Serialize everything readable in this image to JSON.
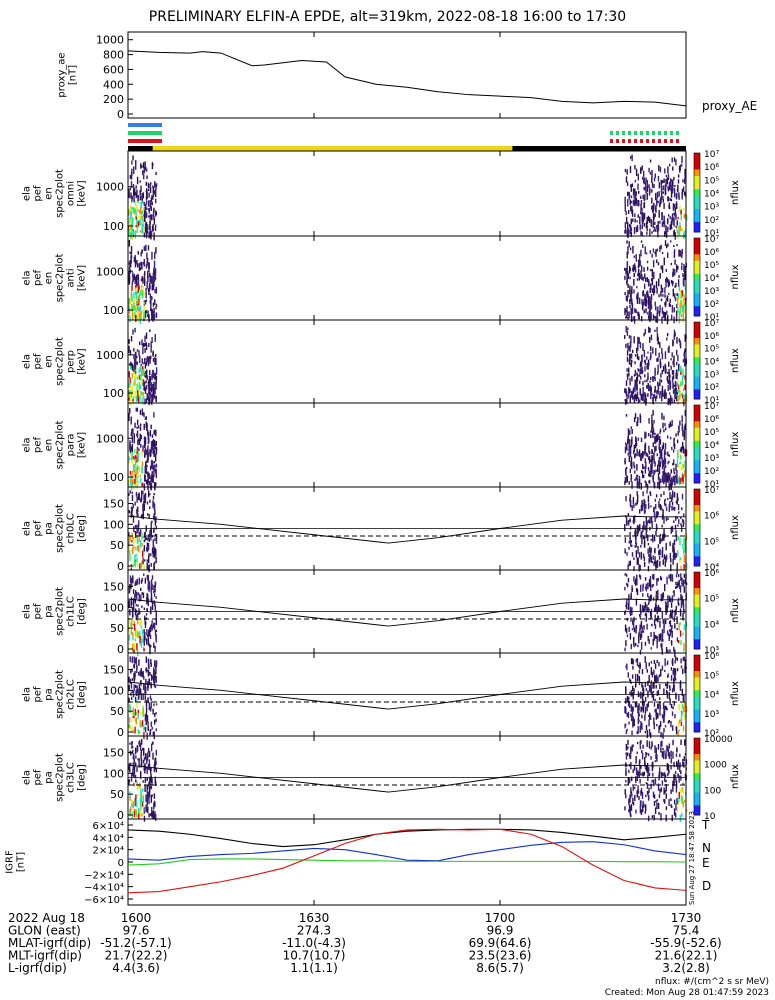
{
  "header": {
    "title": "PRELIMINARY ELFIN-A EPDE, alt=319km, 2022-08-18 16:00 to 17:30"
  },
  "chart_data": {
    "type": "multi-panel time series / spectrogram",
    "time_range": [
      "2022-08-18 16:00",
      "2022-08-18 17:30"
    ],
    "colors": {
      "blue": "#2f80e0",
      "green": "#21d46a",
      "red": "#e01020",
      "yellow": "#f1d514",
      "black": "#000000"
    },
    "ae_panel": {
      "ylabel": "proxy_ae\n[nT]",
      "yticks": [
        "1000",
        "800",
        "600",
        "400",
        "200",
        "0"
      ],
      "ylim": [
        0,
        1050
      ],
      "legend": "proxy_AE",
      "x_minutes": [
        0,
        5,
        10,
        12,
        15,
        20,
        22,
        28,
        32,
        35,
        40,
        45,
        50,
        55,
        60,
        65,
        70,
        75,
        80,
        85,
        90
      ],
      "values": [
        850,
        830,
        820,
        840,
        820,
        650,
        660,
        720,
        700,
        500,
        400,
        360,
        300,
        260,
        240,
        220,
        170,
        150,
        170,
        160,
        110
      ]
    },
    "status_bar": {
      "segments": [
        {
          "color": "black",
          "start_min": 0,
          "end_min": 4
        },
        {
          "color": "yellow",
          "start_min": 4,
          "end_min": 62
        },
        {
          "color": "black",
          "start_min": 62,
          "end_min": 90
        }
      ]
    },
    "spectrogram_panels": [
      {
        "ylabel": "ela\npef\nen\nspec2plot\nomni\n[keV]",
        "yticks": [
          "1000",
          "100"
        ],
        "cbar_labels": [
          "10⁷",
          "10⁶",
          "10⁵",
          "10⁴",
          "10³",
          "10²",
          "10¹"
        ],
        "cbar_unit": "nflux"
      },
      {
        "ylabel": "ela\npef\nen\nspec2plot\nanti\n[keV]",
        "yticks": [
          "1000",
          "100"
        ],
        "cbar_labels": [
          "10⁷",
          "10⁶",
          "10⁵",
          "10⁴",
          "10³",
          "10²",
          "10¹"
        ],
        "cbar_unit": "nflux"
      },
      {
        "ylabel": "ela\npef\nen\nspec2plot\nperp\n[keV]",
        "yticks": [
          "1000",
          "100"
        ],
        "cbar_labels": [
          "10⁷",
          "10⁶",
          "10⁵",
          "10⁴",
          "10³",
          "10²",
          "10¹"
        ],
        "cbar_unit": "nflux"
      },
      {
        "ylabel": "ela\npef\nen\nspec2plot\npara\n[keV]",
        "yticks": [
          "1000",
          "100"
        ],
        "cbar_labels": [
          "10⁷",
          "10⁶",
          "10⁵",
          "10⁴",
          "10³",
          "10²",
          "10¹"
        ],
        "cbar_unit": "nflux"
      }
    ],
    "pitch_panels": [
      {
        "ylabel": "ela\npef\npa\nspec2plot\nch0LC\n[deg]",
        "yticks": [
          "150",
          "100",
          "50",
          "0"
        ],
        "cbar_labels": [
          "10⁷",
          "10⁶",
          "10⁵",
          "10⁴"
        ],
        "cbar_unit": "nflux"
      },
      {
        "ylabel": "ela\npef\npa\nspec2plot\nch1LC\n[deg]",
        "yticks": [
          "150",
          "100",
          "50",
          "0"
        ],
        "cbar_labels": [
          "10⁶",
          "10⁵",
          "10⁴",
          "10³"
        ],
        "cbar_unit": "nflux"
      },
      {
        "ylabel": "ela\npef\npa\nspec2plot\nch2LC\n[deg]",
        "yticks": [
          "150",
          "100",
          "50",
          "0"
        ],
        "cbar_labels": [
          "10⁶",
          "10⁵",
          "10⁴",
          "10³",
          "10²"
        ],
        "cbar_unit": "nflux"
      },
      {
        "ylabel": "ela\npef\npa\nspec2plot\nch3LC\n[deg]",
        "yticks": [
          "150",
          "100",
          "50",
          "0"
        ],
        "cbar_labels": [
          "10000",
          "1000",
          "100",
          "10"
        ],
        "cbar_unit": "nflux"
      }
    ],
    "pitch_lines": {
      "x_minutes": [
        0,
        5,
        15,
        30,
        42,
        50,
        60,
        70,
        80,
        84,
        90
      ],
      "lc_solid": [
        120,
        112,
        100,
        75,
        55,
        68,
        90,
        110,
        120,
        118,
        118
      ],
      "lc_dashed": [
        72,
        72,
        72,
        72,
        72,
        72,
        72,
        72,
        72,
        72,
        72
      ],
      "ref_90": 90
    },
    "igrf_panel": {
      "ylabel": "IGRF\n[nT]",
      "yticks": [
        "6×10⁴",
        "4×10⁴",
        "2×10⁴",
        "0",
        "−2×10⁴",
        "−4×10⁴",
        "−6×10⁴"
      ],
      "ylim": [
        -60000,
        60000
      ],
      "x_minutes": [
        0,
        5,
        10,
        15,
        20,
        25,
        30,
        35,
        40,
        45,
        50,
        55,
        60,
        65,
        70,
        75,
        80,
        85,
        90
      ],
      "series": [
        {
          "name": "T",
          "color": "#000000",
          "values": [
            52000,
            50000,
            45000,
            38000,
            30000,
            25000,
            28000,
            36000,
            45000,
            50000,
            52000,
            53000,
            53000,
            52000,
            48000,
            42000,
            36000,
            40000,
            45000
          ]
        },
        {
          "name": "N",
          "color": "#1030d0",
          "values": [
            5000,
            3000,
            9000,
            12000,
            14000,
            18000,
            22000,
            20000,
            12000,
            3000,
            2000,
            12000,
            20000,
            27000,
            32000,
            33000,
            28000,
            18000,
            12000
          ]
        },
        {
          "name": "E",
          "color": "#22cc22",
          "values": [
            -5000,
            -3000,
            4000,
            5000,
            5000,
            4000,
            3000,
            2000,
            2000,
            1000,
            1000,
            1000,
            1000,
            1000,
            1000,
            1000,
            500,
            500,
            0
          ]
        },
        {
          "name": "D",
          "color": "#dd1111",
          "values": [
            -50000,
            -48000,
            -40000,
            -32000,
            -22000,
            -10000,
            10000,
            30000,
            45000,
            52000,
            53000,
            52000,
            53000,
            45000,
            25000,
            -5000,
            -30000,
            -42000,
            -46000
          ]
        }
      ]
    },
    "time_axis": {
      "rows": [
        {
          "label": "2022 Aug 18",
          "values": [
            "1600",
            "1630",
            "1700",
            "1730"
          ]
        },
        {
          "label": "GLON (east)",
          "values": [
            "97.6",
            "274.3",
            "96.9",
            "75.4"
          ]
        },
        {
          "label": "MLAT-igrf(dip)",
          "values": [
            "-51.2(-57.1)",
            "-11.0(-4.3)",
            "69.9(64.6)",
            "-55.9(-52.6)"
          ]
        },
        {
          "label": "MLT-igrf(dip)",
          "values": [
            "21.7(22.2)",
            "10.7(10.7)",
            "23.5(23.6)",
            "21.6(22.1)"
          ]
        },
        {
          "label": "L-igrf(dip)",
          "values": [
            "4.4(3.6)",
            "1.1(1.1)",
            "8.6(5.7)",
            "3.2(2.8)"
          ]
        }
      ],
      "tick_minutes": [
        0,
        30,
        60,
        90
      ]
    },
    "notes": {
      "units": "nflux: #/(cm^2 s sr MeV)",
      "created": "Created: Mon Aug 28 01:47:59 2023",
      "side_stamp": "Sun Aug 27 18:47:58 2023"
    }
  }
}
